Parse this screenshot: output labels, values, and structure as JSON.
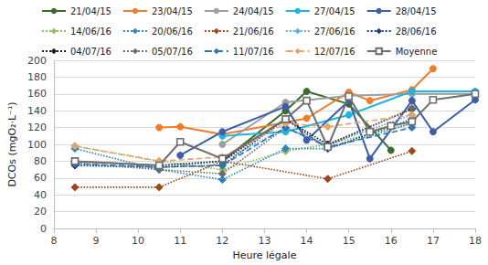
{
  "chart_data": {
    "type": "line",
    "x_label": "Heure légale",
    "y_label": "DCOs (mgO₂·L⁻¹)",
    "xlim": [
      8,
      18
    ],
    "xticks": [
      8,
      9,
      10,
      11,
      12,
      13,
      14,
      15,
      16,
      17,
      18
    ],
    "ylim": [
      0,
      200
    ],
    "yticks": [
      0,
      20,
      40,
      60,
      80,
      100,
      120,
      140,
      160,
      180,
      200
    ],
    "grid": true,
    "legend": "top",
    "series": [
      {
        "name": "21/04/15",
        "color": "#3a6b2a",
        "line_style": "solid",
        "marker": "circle",
        "x": [
          12,
          13.5,
          14,
          15,
          16
        ],
        "values": [
          80,
          140,
          163,
          148,
          93
        ]
      },
      {
        "name": "23/04/15",
        "color": "#f07d2a",
        "line_style": "solid",
        "marker": "circle",
        "x": [
          10.5,
          11,
          12,
          14,
          15,
          15.5,
          16.5,
          17
        ],
        "values": [
          120,
          121,
          112,
          131,
          162,
          152,
          165,
          190
        ]
      },
      {
        "name": "24/04/15",
        "color": "#9e9e9e",
        "line_style": "solid",
        "marker": "circle",
        "x": [
          12,
          13.5,
          15,
          16.5,
          18
        ],
        "values": [
          100,
          150,
          158,
          160,
          160
        ]
      },
      {
        "name": "27/04/15",
        "color": "#1fb5e0",
        "line_style": "solid",
        "marker": "circle",
        "x": [
          12,
          13.5,
          15,
          16.5,
          18
        ],
        "values": [
          110,
          115,
          135,
          163,
          163
        ]
      },
      {
        "name": "28/04/15",
        "color": "#3d5fa8",
        "line_style": "solid",
        "marker": "circle",
        "x": [
          11,
          12,
          13.5,
          14,
          15,
          15.5,
          16.5,
          17,
          18
        ],
        "values": [
          87,
          115,
          145,
          105,
          152,
          83,
          152,
          115,
          153
        ]
      },
      {
        "name": "14/06/16",
        "color": "#8cc152",
        "line_style": "dotted",
        "marker": "diamond",
        "x": [
          8.5,
          10.5,
          12,
          13.5,
          14.5,
          16.5
        ],
        "values": [
          98,
          80,
          70,
          92,
          100,
          125
        ]
      },
      {
        "name": "20/06/16",
        "color": "#2e86c1",
        "line_style": "dotted",
        "marker": "diamond",
        "x": [
          8.5,
          10.5,
          12,
          13.5,
          14.5,
          16.5
        ],
        "values": [
          95,
          70,
          58,
          95,
          95,
          125
        ]
      },
      {
        "name": "21/06/16",
        "color": "#a0461a",
        "line_style": "dotted",
        "marker": "diamond",
        "x": [
          8.5,
          10.5,
          12,
          14.5,
          16.5
        ],
        "values": [
          49,
          49,
          80,
          59,
          92
        ]
      },
      {
        "name": "27/06/16",
        "color": "#5dade2",
        "line_style": "dotted",
        "marker": "diamond",
        "x": [
          8.5,
          10.5,
          12,
          13.5,
          14.5,
          16.5
        ],
        "values": [
          75,
          72,
          80,
          120,
          100,
          135
        ]
      },
      {
        "name": "28/06/16",
        "color": "#1f3f7a",
        "line_style": "dotted",
        "marker": "diamond",
        "x": [
          8.5,
          10.5,
          12,
          13.5,
          14.5,
          16.5
        ],
        "values": [
          75,
          73,
          75,
          130,
          95,
          130
        ]
      },
      {
        "name": "04/07/16",
        "color": "#1a1a1a",
        "line_style": "dotted",
        "marker": "diamond",
        "x": [
          8.5,
          10.5,
          12,
          13.5,
          14.5,
          16.5
        ],
        "values": [
          80,
          75,
          80,
          130,
          100,
          142
        ]
      },
      {
        "name": "05/07/16",
        "color": "#6b6b6b",
        "line_style": "dotted",
        "marker": "diamond",
        "x": [
          8.5,
          10.5,
          12,
          13.5,
          14.5,
          16.5
        ],
        "values": [
          78,
          70,
          65,
          120,
          98,
          143
        ]
      },
      {
        "name": "11/07/16",
        "color": "#2f75b5",
        "line_style": "dashed",
        "marker": "diamond",
        "x": [
          8.5,
          10.5,
          12,
          13.5,
          14.5,
          16.5
        ],
        "values": [
          77,
          73,
          75,
          120,
          97,
          120
        ]
      },
      {
        "name": "12/07/16",
        "color": "#e3a56b",
        "line_style": "dashed",
        "marker": "diamond",
        "x": [
          8.5,
          10.5,
          12,
          13.5,
          14.5,
          16.5
        ],
        "values": [
          98,
          80,
          85,
          125,
          121,
          135
        ]
      },
      {
        "name": "Moyenne",
        "color": "#6e6e6e",
        "line_style": "solid",
        "marker": "square-open",
        "x": [
          8.5,
          10.5,
          11,
          12,
          13.5,
          14,
          14.5,
          15,
          15.5,
          16,
          16.5,
          17,
          18
        ],
        "values": [
          80,
          75,
          103,
          83,
          130,
          152,
          97,
          157,
          115,
          122,
          127,
          153,
          160
        ]
      }
    ]
  }
}
